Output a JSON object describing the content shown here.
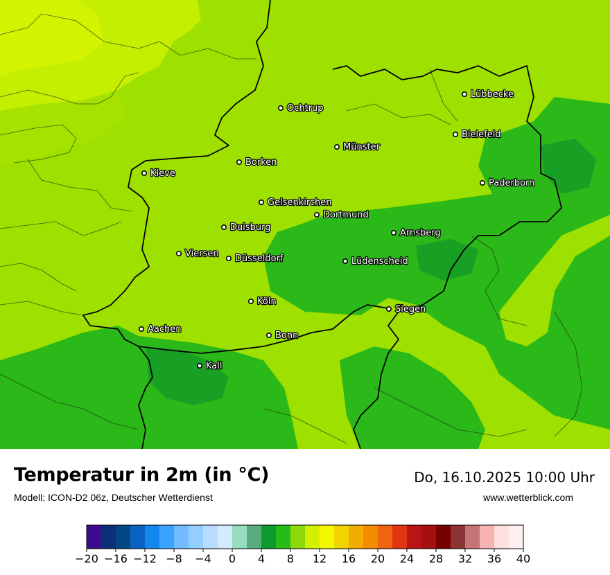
{
  "header": {
    "title": "Temperatur in 2m (in °C)",
    "subtitle": "Modell: ICON-D2 06z, Deutscher Wetterdienst",
    "datetime": "Do, 16.10.2025 10:00 Uhr",
    "website": "www.wetterblick.com"
  },
  "cities": [
    {
      "name": "Lübbecke"
    },
    {
      "name": "Ochtrup"
    },
    {
      "name": "Bielefeld"
    },
    {
      "name": "Münster"
    },
    {
      "name": "Borken"
    },
    {
      "name": "Kleve"
    },
    {
      "name": "Paderborn"
    },
    {
      "name": "Gelsenkirchen"
    },
    {
      "name": "Dortmund"
    },
    {
      "name": "Duisburg"
    },
    {
      "name": "Arnsberg"
    },
    {
      "name": "Viersen"
    },
    {
      "name": "Düsseldorf"
    },
    {
      "name": "Lüdenscheid"
    },
    {
      "name": "Köln"
    },
    {
      "name": "Siegen"
    },
    {
      "name": "Aachen"
    },
    {
      "name": "Bonn"
    },
    {
      "name": "Kall"
    }
  ],
  "colorbar": {
    "min": -20,
    "max": 40,
    "step": 2,
    "ticks": [
      "−20",
      "−16",
      "−12",
      "−8",
      "−4",
      "0",
      "4",
      "8",
      "12",
      "16",
      "20",
      "24",
      "28",
      "32",
      "36",
      "40"
    ],
    "colors": [
      "#3a0d8c",
      "#0b2f78",
      "#044585",
      "#0a63c0",
      "#1386f0",
      "#3aa3ff",
      "#74bcff",
      "#94cdff",
      "#b7dcff",
      "#d6eaff",
      "#98dcc0",
      "#5aab7e",
      "#0d9a2f",
      "#27bb16",
      "#8ed90b",
      "#d2f000",
      "#f3f700",
      "#efd400",
      "#f3ad00",
      "#f48c00",
      "#ee6410",
      "#e1350f",
      "#ba1414",
      "#a40f0f",
      "#770000",
      "#8c3333",
      "#c47474",
      "#f7b2b2",
      "#ffdede",
      "#fff0f0"
    ]
  },
  "map_colors": {
    "t12": "#9ee000",
    "t10": "#b8ea00",
    "t14": "#cdf200",
    "t8": "#2bb819",
    "t6": "#17a023"
  }
}
